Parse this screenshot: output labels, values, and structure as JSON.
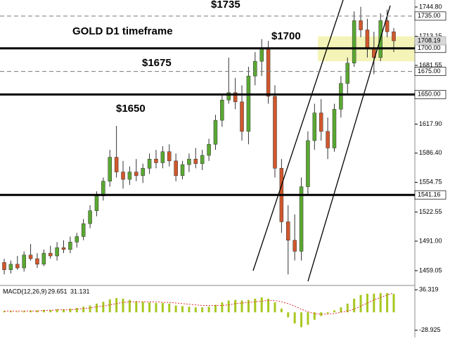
{
  "chart_data": [
    {
      "type": "candlestick",
      "title": "GOLD D1 timeframe",
      "annotations": [
        {
          "text": "$1735"
        },
        {
          "text": "$1700"
        },
        {
          "text": "$1675"
        },
        {
          "text": "$1650"
        }
      ],
      "up_color": "#5aa832",
      "down_color": "#d0572c",
      "open": [
        1468,
        1460,
        1466,
        1462,
        1476,
        1472,
        1466,
        1478,
        1475,
        1484,
        1482,
        1490,
        1496,
        1510,
        1524,
        1540,
        1556,
        1582,
        1566,
        1558,
        1566,
        1562,
        1570,
        1580,
        1576,
        1588,
        1578,
        1562,
        1574,
        1580,
        1575,
        1584,
        1596,
        1622,
        1644,
        1652,
        1642,
        1610,
        1670,
        1686,
        1700,
        1648,
        1570,
        1512,
        1492,
        1480,
        1550,
        1600,
        1630,
        1610,
        1592,
        1634,
        1662,
        1684,
        1730,
        1720,
        1700,
        1690,
        1730,
        1718
      ],
      "high": [
        1472,
        1470,
        1475,
        1480,
        1488,
        1478,
        1482,
        1486,
        1490,
        1492,
        1496,
        1500,
        1515,
        1530,
        1545,
        1560,
        1590,
        1616,
        1578,
        1572,
        1580,
        1575,
        1586,
        1590,
        1594,
        1596,
        1586,
        1578,
        1586,
        1592,
        1590,
        1602,
        1628,
        1650,
        1690,
        1668,
        1660,
        1680,
        1696,
        1710,
        1708,
        1660,
        1580,
        1530,
        1520,
        1560,
        1610,
        1640,
        1645,
        1625,
        1640,
        1670,
        1690,
        1740,
        1745,
        1732,
        1718,
        1738,
        1742,
        1722
      ],
      "low": [
        1455,
        1456,
        1460,
        1458,
        1470,
        1462,
        1464,
        1472,
        1470,
        1478,
        1478,
        1484,
        1492,
        1505,
        1518,
        1535,
        1550,
        1560,
        1548,
        1552,
        1556,
        1554,
        1564,
        1570,
        1570,
        1572,
        1556,
        1558,
        1566,
        1570,
        1568,
        1578,
        1590,
        1615,
        1640,
        1634,
        1600,
        1596,
        1660,
        1670,
        1640,
        1560,
        1500,
        1455,
        1470,
        1470,
        1540,
        1590,
        1600,
        1580,
        1588,
        1625,
        1650,
        1680,
        1712,
        1690,
        1672,
        1686,
        1712,
        1696
      ],
      "close": [
        1460,
        1466,
        1462,
        1476,
        1472,
        1466,
        1478,
        1475,
        1484,
        1482,
        1490,
        1496,
        1510,
        1524,
        1540,
        1556,
        1582,
        1566,
        1558,
        1566,
        1562,
        1570,
        1580,
        1576,
        1588,
        1578,
        1562,
        1574,
        1580,
        1575,
        1584,
        1596,
        1622,
        1644,
        1652,
        1642,
        1610,
        1670,
        1686,
        1700,
        1648,
        1570,
        1512,
        1492,
        1480,
        1550,
        1600,
        1630,
        1610,
        1592,
        1634,
        1662,
        1684,
        1730,
        1720,
        1700,
        1690,
        1730,
        1718,
        1708.19
      ],
      "ylim": [
        1443,
        1752.4
      ],
      "yticks": [
        {
          "value": 1744.8,
          "label": "1744.80"
        },
        {
          "value": 1713.15,
          "label": "1713.15"
        },
        {
          "value": 1681.55,
          "label": "1681.55"
        },
        {
          "value": 1617.9,
          "label": "1617.90"
        },
        {
          "value": 1586.4,
          "label": "1586.40"
        },
        {
          "value": 1554.75,
          "label": "1554.75"
        },
        {
          "value": 1522.55,
          "label": "1522.55"
        },
        {
          "value": 1491,
          "label": "1491.00"
        },
        {
          "value": 1459.05,
          "label": "1459.05"
        }
      ],
      "levels": [
        {
          "value": 1735,
          "label": "1735.00",
          "style": "dashed"
        },
        {
          "value": 1700,
          "label": "1700.00",
          "style": "solid"
        },
        {
          "value": 1675,
          "label": "1675.00",
          "style": "dashed"
        },
        {
          "value": 1650,
          "label": "1650.00",
          "style": "solid"
        },
        {
          "value": 1541.16,
          "label": "1541.16",
          "style": "solid"
        }
      ],
      "last_price": 1708.19,
      "zone": [
        1686,
        1713
      ],
      "zone_color": "#f4f4b8"
    },
    {
      "type": "bar",
      "title": "MACD(12,26,9)",
      "series": [
        {
          "name": "MACD",
          "color": "#a8c820",
          "values": [
            2,
            2,
            1,
            2,
            3,
            3,
            4,
            4,
            5,
            5,
            6,
            7,
            9,
            11,
            14,
            17,
            21,
            23,
            22,
            20,
            18,
            17,
            16,
            15,
            15,
            14,
            11,
            10,
            9,
            8,
            8,
            9,
            12,
            16,
            19,
            20,
            19,
            20,
            22,
            24,
            22,
            16,
            6,
            -8,
            -18,
            -24,
            -20,
            -12,
            -6,
            -2,
            3,
            8,
            14,
            22,
            28,
            30,
            30,
            31,
            31,
            29.651
          ]
        },
        {
          "name": "Signal",
          "color": "#e03030",
          "values": [
            2,
            2,
            2,
            2,
            2,
            2,
            3,
            3,
            4,
            4,
            4,
            5,
            6,
            7,
            9,
            10,
            12,
            14,
            16,
            17,
            17,
            17,
            17,
            17,
            16,
            16,
            15,
            14,
            13,
            12,
            11,
            11,
            11,
            11,
            12,
            14,
            15,
            16,
            17,
            18,
            19,
            19,
            17,
            14,
            10,
            5,
            1,
            -2,
            -3,
            -3,
            -2,
            0,
            2,
            5,
            10,
            15,
            20,
            24,
            28,
            31.131
          ]
        }
      ],
      "ylim": [
        -40.6,
        43.3
      ],
      "yticks": [
        36.319,
        -28.925
      ]
    }
  ]
}
